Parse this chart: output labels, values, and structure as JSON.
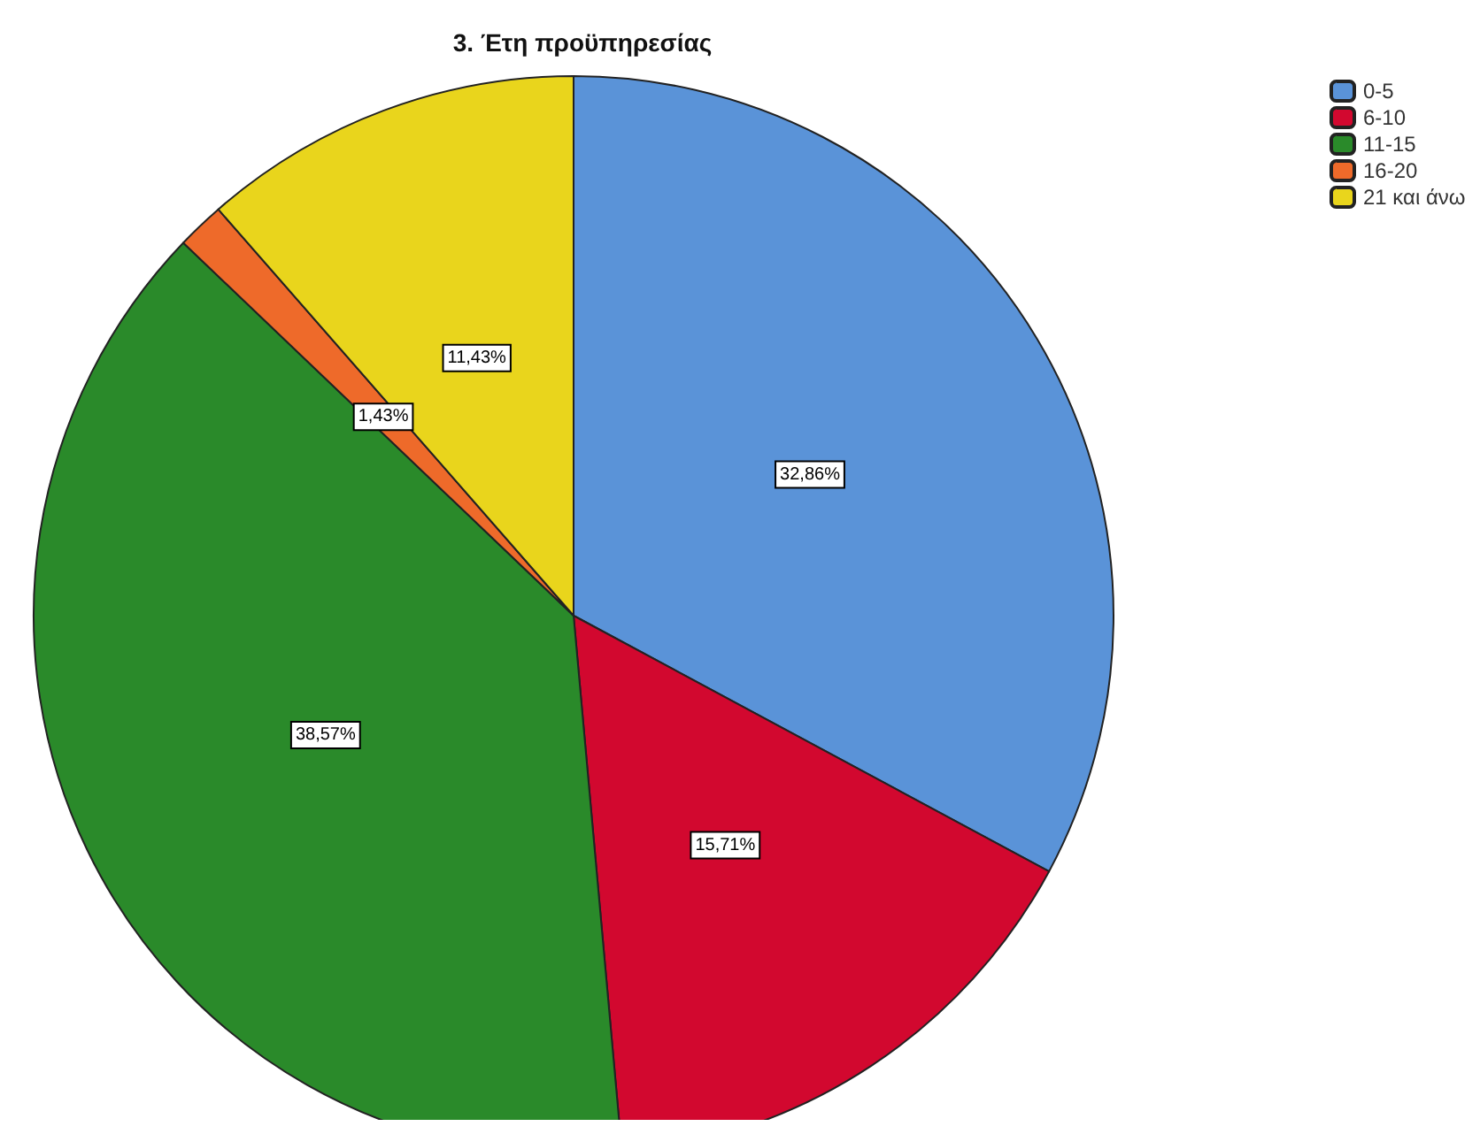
{
  "chart_data": {
    "type": "pie",
    "title": "3. Έτη προϋπηρεσίας",
    "categories": [
      "0-5",
      "6-10",
      "11-15",
      "16-20",
      "21 και άνω"
    ],
    "values": [
      32.86,
      15.71,
      38.57,
      1.43,
      11.43
    ],
    "colors": [
      "#5a93d8",
      "#d2082f",
      "#2a8a2a",
      "#ee6a2a",
      "#e9d51c"
    ],
    "value_labels": [
      "32,86%",
      "15,71%",
      "38,57%",
      "1,43%",
      "11,43%"
    ],
    "legend": "top right"
  }
}
